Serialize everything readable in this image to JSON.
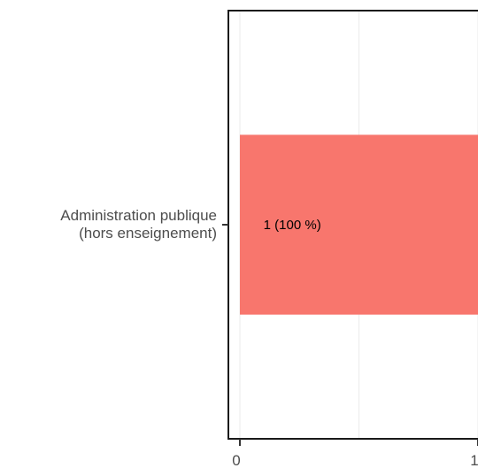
{
  "chart_data": {
    "type": "bar",
    "orientation": "horizontal",
    "categories": [
      "Administration publique\n(hors enseignement)"
    ],
    "values": [
      1
    ],
    "data_labels": [
      "1 (100 %)"
    ],
    "xlim": [
      0,
      1
    ],
    "x_ticks": [
      0,
      1
    ],
    "x_tick_labels": [
      "0",
      "1"
    ],
    "grid": true,
    "legend": "none",
    "bar_color": "#F8766D",
    "title": "",
    "xlabel": "",
    "ylabel": ""
  }
}
